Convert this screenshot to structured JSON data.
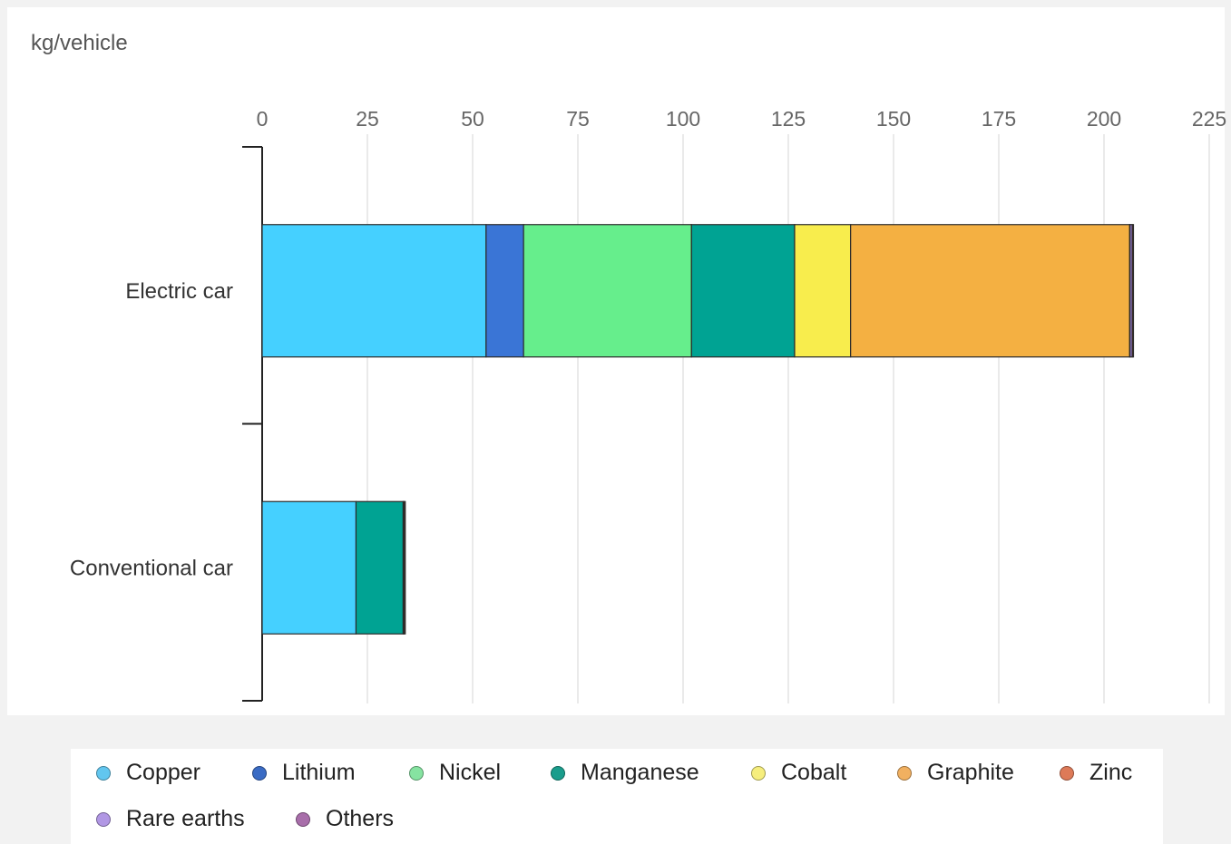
{
  "chart_data": {
    "type": "bar",
    "orientation": "horizontal",
    "stacked": true,
    "ylabel": "kg/vehicle",
    "categories": [
      "Electric car",
      "Conventional car"
    ],
    "x_ticks": [
      0,
      25,
      50,
      75,
      100,
      125,
      150,
      175,
      200,
      225
    ],
    "xlim": [
      0,
      225
    ],
    "grid": true,
    "legend_position": "bottom",
    "series": [
      {
        "name": "Copper",
        "color": "#45d0ff",
        "values": [
          53.2,
          22.3
        ]
      },
      {
        "name": "Lithium",
        "color": "#3a75d6",
        "values": [
          8.9,
          0
        ]
      },
      {
        "name": "Nickel",
        "color": "#66ee8c",
        "values": [
          39.9,
          0
        ]
      },
      {
        "name": "Manganese",
        "color": "#00a393",
        "values": [
          24.5,
          11.2
        ]
      },
      {
        "name": "Cobalt",
        "color": "#f8ed4d",
        "values": [
          13.3,
          0
        ]
      },
      {
        "name": "Graphite",
        "color": "#f4b042",
        "values": [
          66.3,
          0
        ]
      },
      {
        "name": "Zinc",
        "color": "#e07850",
        "values": [
          0.1,
          0.2
        ]
      },
      {
        "name": "Rare earths",
        "color": "#a988e6",
        "values": [
          0.5,
          0
        ]
      },
      {
        "name": "Others",
        "color": "#6e3a1e",
        "values": [
          0.3,
          0.3
        ]
      }
    ]
  },
  "legend": {
    "rows": [
      [
        "Copper",
        "Lithium",
        "Nickel",
        "Manganese",
        "Cobalt",
        "Graphite",
        "Zinc"
      ],
      [
        "Rare earths",
        "Others"
      ]
    ],
    "swatch_colors": {
      "Copper": "#62c6ef",
      "Lithium": "#3a6bc4",
      "Nickel": "#86e3a1",
      "Manganese": "#1a9d8c",
      "Cobalt": "#f6ee7d",
      "Graphite": "#f1b060",
      "Zinc": "#dd7a58",
      "Rare earths": "#b197e4",
      "Others": "#a86eaa"
    }
  }
}
